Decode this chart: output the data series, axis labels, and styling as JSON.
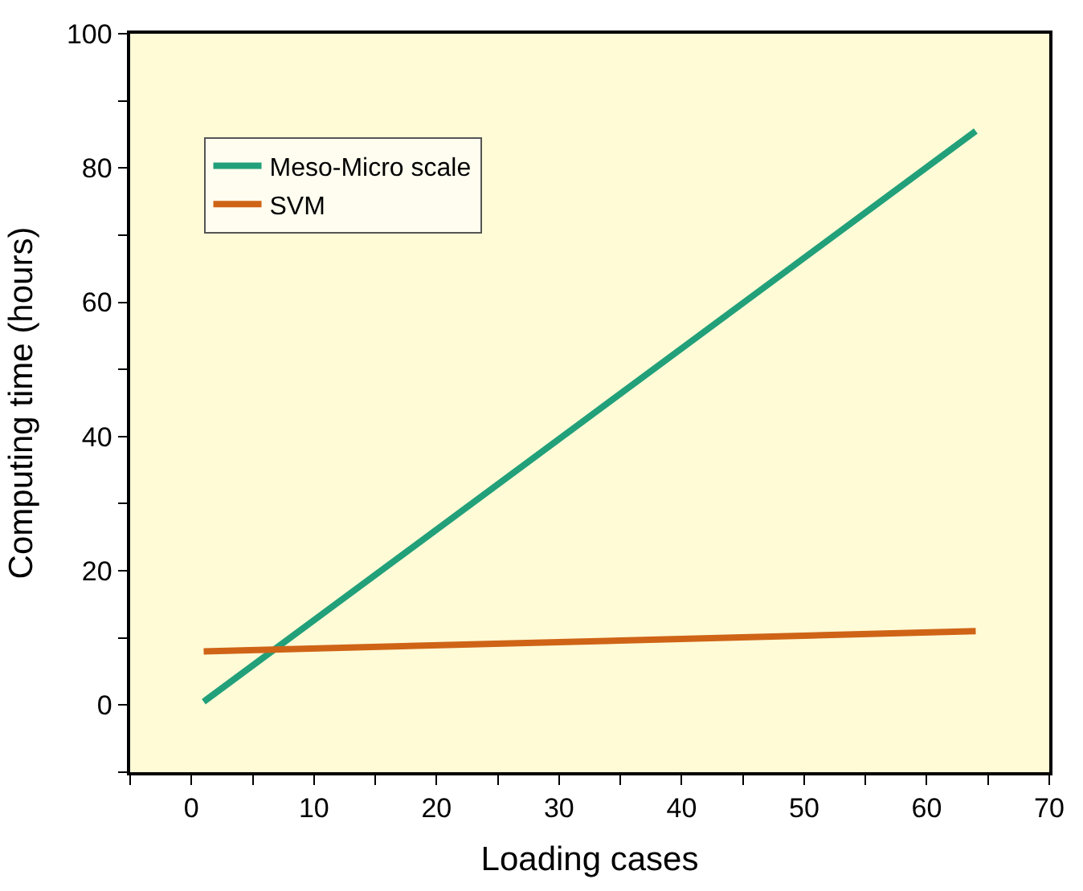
{
  "chart_data": {
    "type": "line",
    "xlabel": "Loading cases",
    "ylabel": "Computing time (hours)",
    "xlim": [
      -5,
      70
    ],
    "ylim": [
      -10,
      100
    ],
    "xticks": [
      {
        "value": -5,
        "label": null
      },
      0,
      {
        "value": 5,
        "label": null
      },
      10,
      {
        "value": 15,
        "label": null
      },
      20,
      {
        "value": 25,
        "label": null
      },
      30,
      {
        "value": 35,
        "label": null
      },
      40,
      {
        "value": 45,
        "label": null
      },
      50,
      {
        "value": 55,
        "label": null
      },
      60,
      {
        "value": 65,
        "label": null
      },
      70
    ],
    "yticks": [
      {
        "value": -10,
        "label": null
      },
      0,
      {
        "value": 10,
        "label": null
      },
      20,
      {
        "value": 30,
        "label": null
      },
      40,
      {
        "value": 50,
        "label": null
      },
      60,
      {
        "value": 70,
        "label": null
      },
      80,
      {
        "value": 90,
        "label": null
      },
      100
    ],
    "grid": false,
    "legend": "top left",
    "marker": "none",
    "line_style": "solid",
    "x": [
      1,
      64
    ],
    "series": [
      {
        "name": "Meso-Micro scale",
        "color": "#22a07a",
        "values": [
          0.5,
          85.5
        ]
      },
      {
        "name": "SVM",
        "color": "#cf6417",
        "values": [
          8,
          11
        ]
      }
    ]
  }
}
